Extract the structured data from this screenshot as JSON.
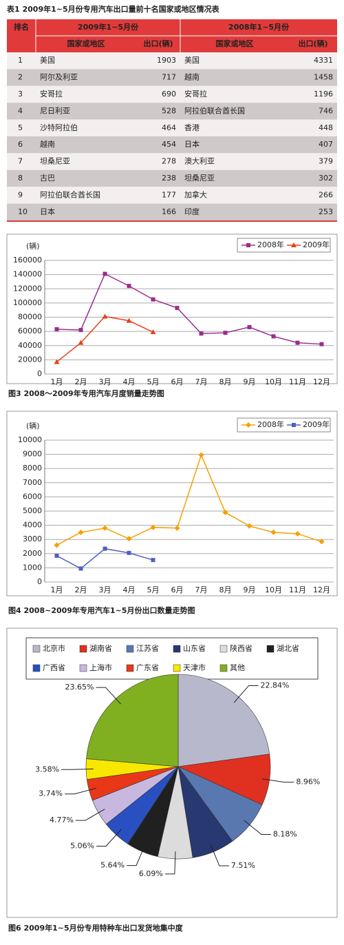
{
  "table": {
    "title": "表1 2009年1~5月份专用汽车出口量前十名国家或地区情况表",
    "header": {
      "rank": "排名",
      "groups": [
        "2009年1~5月份",
        "2008年1~5月份"
      ],
      "columns": [
        "国家或地区",
        "出口(辆)",
        "国家或地区",
        "出口(辆)"
      ]
    },
    "rows": [
      [
        1,
        "美国",
        1903,
        "美国",
        4331
      ],
      [
        2,
        "阿尔及利亚",
        717,
        "越南",
        1458
      ],
      [
        3,
        "安哥拉",
        690,
        "安哥拉",
        1196
      ],
      [
        4,
        "尼日利亚",
        528,
        "阿拉伯联合酋长国",
        746
      ],
      [
        5,
        "沙特阿拉伯",
        464,
        "香港",
        448
      ],
      [
        6,
        "越南",
        454,
        "日本",
        407
      ],
      [
        7,
        "坦桑尼亚",
        278,
        "澳大利亚",
        379
      ],
      [
        8,
        "古巴",
        238,
        "坦桑尼亚",
        302
      ],
      [
        9,
        "阿拉伯联合酋长国",
        177,
        "加拿大",
        266
      ],
      [
        10,
        "日本",
        166,
        "印度",
        253
      ]
    ]
  },
  "chart_data": [
    {
      "type": "line",
      "title": "图3 2008～2009年专用汽车月度销量走势图",
      "y_label": "(辆)",
      "categories": [
        "1月",
        "2月",
        "3月",
        "4月",
        "5月",
        "6月",
        "7月",
        "8月",
        "9月",
        "10月",
        "11月",
        "12月"
      ],
      "series": [
        {
          "name": "2008年",
          "color": "#9b2d8f",
          "marker": "square",
          "values": [
            63000,
            62000,
            141000,
            124000,
            105000,
            93000,
            57000,
            58000,
            66000,
            53000,
            44000,
            42000
          ]
        },
        {
          "name": "2009年",
          "color": "#e8401c",
          "marker": "triangle",
          "values": [
            17000,
            44000,
            81000,
            75000,
            59000,
            null,
            null,
            null,
            null,
            null,
            null,
            null
          ]
        }
      ],
      "ylim": [
        0,
        160000
      ],
      "yticks": [
        0,
        20000,
        40000,
        60000,
        80000,
        100000,
        120000,
        140000,
        160000
      ],
      "grid": true,
      "legend": "top-right"
    },
    {
      "type": "line",
      "title": "图4 2008~2009年专用汽车1~5月份出口数量走势图",
      "y_label": "(辆)",
      "categories": [
        "1月",
        "2月",
        "3月",
        "4月",
        "5月",
        "6月",
        "7月",
        "8月",
        "9月",
        "10月",
        "11月",
        "12月"
      ],
      "series": [
        {
          "name": "2008年",
          "color": "#f5a000",
          "marker": "diamond",
          "values": [
            2600,
            3500,
            3800,
            3050,
            3850,
            3800,
            8950,
            4900,
            3950,
            3500,
            3400,
            2850
          ]
        },
        {
          "name": "2009年",
          "color": "#5060c0",
          "marker": "square",
          "values": [
            1850,
            950,
            2350,
            2050,
            1550,
            null,
            null,
            null,
            null,
            null,
            null,
            null
          ]
        }
      ],
      "ylim": [
        0,
        10000
      ],
      "yticks": [
        0,
        1000,
        2000,
        3000,
        4000,
        5000,
        6000,
        7000,
        8000,
        9000,
        10000
      ],
      "grid": true,
      "legend": "top-right"
    },
    {
      "type": "pie",
      "title": "图6 2009年1~5月份专用特种车出口发货地集中度",
      "categories": [
        "北京市",
        "湖南省",
        "江苏省",
        "山东省",
        "陕西省",
        "湖北省",
        "广西省",
        "上海市",
        "广东省",
        "天津市",
        "其他"
      ],
      "values": [
        22.84,
        8.96,
        8.18,
        7.51,
        6.09,
        5.64,
        5.06,
        4.77,
        3.74,
        3.58,
        23.65
      ],
      "value_labels": [
        "22.84%",
        "8.96%",
        "8.18%",
        "7.51%",
        "6.09%",
        "5.64%",
        "5.06%",
        "4.77%",
        "3.74%",
        "3.58%",
        "23.65%"
      ],
      "colors": [
        "#b8b8cc",
        "#e03020",
        "#5a78b0",
        "#283870",
        "#dcdcdc",
        "#202020",
        "#2850c0",
        "#c8b8e0",
        "#e83818",
        "#f8e800",
        "#80b020"
      ],
      "legend": "top"
    }
  ]
}
